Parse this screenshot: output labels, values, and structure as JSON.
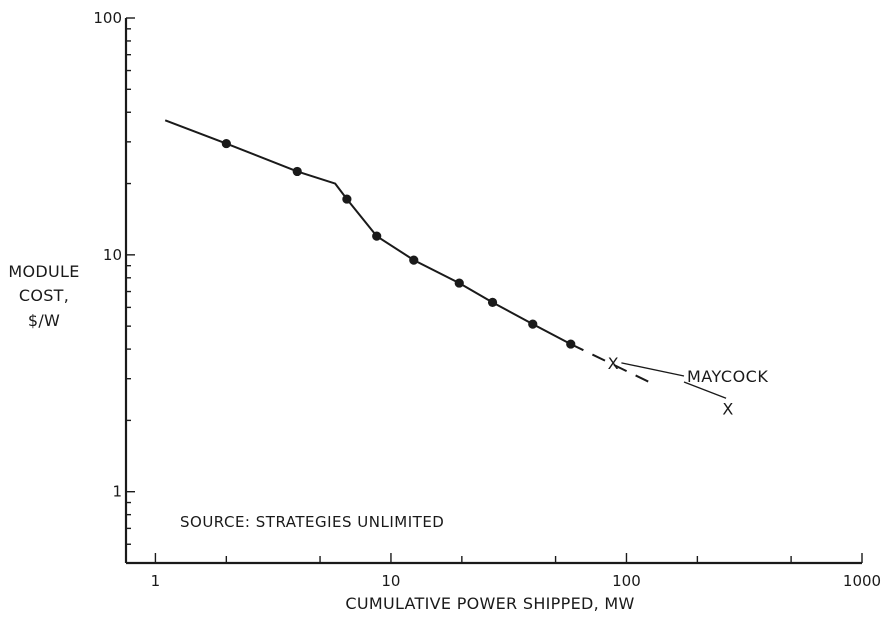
{
  "chart_data": {
    "type": "line",
    "xscale": "log",
    "yscale": "log",
    "xlim": [
      0.75,
      1000
    ],
    "ylim": [
      0.5,
      100
    ],
    "x_ticks": [
      1,
      10,
      100,
      1000
    ],
    "x_tick_labels": [
      "1",
      "10",
      "100",
      "1000"
    ],
    "y_ticks": [
      1,
      10,
      100
    ],
    "y_tick_labels": [
      "1",
      "10",
      "100"
    ],
    "xlabel": "CUMULATIVE POWER SHIPPED, MW",
    "ylabel": [
      "MODULE",
      "COST,",
      "$/W"
    ],
    "annotation_source": "SOURCE: STRATEGIES UNLIMITED",
    "series": [
      {
        "style": "solid",
        "marker": "dot",
        "x": [
          1.1,
          2.0,
          4.0,
          5.8,
          6.5,
          8.7,
          12.5,
          19.5,
          27.0,
          40.0,
          58.0
        ],
        "y": [
          37.0,
          29.5,
          22.5,
          20.0,
          17.2,
          12.0,
          9.5,
          7.6,
          6.3,
          5.1,
          4.2
        ],
        "marked": [
          false,
          true,
          true,
          false,
          true,
          true,
          true,
          true,
          true,
          true,
          true
        ]
      },
      {
        "style": "dashed",
        "marker": "none",
        "x": [
          58.0,
          130.0
        ],
        "y": [
          4.2,
          2.85
        ]
      },
      {
        "name": "MAYCOCK",
        "style": "none",
        "marker": "x",
        "x": [
          88,
          270
        ],
        "y": [
          3.5,
          2.25
        ]
      }
    ],
    "annotations": [
      {
        "text": "MAYCOCK",
        "x": 300,
        "y": 3.2
      }
    ],
    "grid": false,
    "colors": {
      "ink": "#1a1a1a",
      "background": "#ffffff"
    }
  }
}
